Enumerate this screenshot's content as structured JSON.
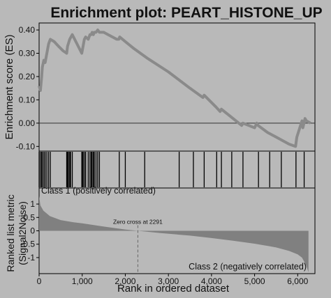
{
  "chart_data": {
    "type": "line",
    "title": "Enrichment plot: PEART_HISTONE_UP",
    "xlabel": "Rank in ordered dataset",
    "ylabel_top": "Enrichment score (ES)",
    "ylabel_bottom_line1": "Ranked list metric",
    "ylabel_bottom_line2": "(Signal2Noise)",
    "x_ticks": [
      0,
      1000,
      2000,
      3000,
      4000,
      5000,
      6000
    ],
    "x_tick_labels": [
      "0",
      "1,000",
      "2,000",
      "3,000",
      "4,000",
      "5,000",
      "6,000"
    ],
    "xlim": [
      0,
      6400
    ],
    "es_ylim": [
      -0.12,
      0.43
    ],
    "es_ticks": [
      0.4,
      0.3,
      0.2,
      0.1,
      0.0,
      -0.1
    ],
    "es_tick_labels": [
      "0.40",
      "0.30",
      "0.20",
      "0.10",
      "0.00",
      "-0.10"
    ],
    "metric_ylim": [
      -1.6,
      1.6
    ],
    "metric_ticks": [
      1,
      0.5,
      0,
      -0.5,
      -1
    ],
    "metric_tick_labels": [
      "1",
      "0.5",
      "0",
      "-0.5",
      "-1"
    ],
    "es_curve": {
      "x": [
        0,
        30,
        60,
        75,
        110,
        140,
        180,
        220,
        260,
        350,
        450,
        560,
        640,
        660,
        710,
        770,
        990,
        1020,
        1050,
        1080,
        1140,
        1180,
        1210,
        1230,
        1260,
        1280,
        1320,
        1360,
        1400,
        1450,
        1500,
        1600,
        1800,
        1850,
        1870,
        2000,
        2200,
        2500,
        3000,
        3500,
        3800,
        3830,
        4100,
        4200,
        4230,
        4500,
        4700,
        4730,
        5000,
        5050,
        5080,
        5300,
        5500,
        5800,
        5950,
        5980,
        6100,
        6120,
        6170,
        6200,
        6300
      ],
      "y": [
        0.16,
        0.14,
        0.2,
        0.24,
        0.27,
        0.26,
        0.3,
        0.34,
        0.36,
        0.35,
        0.33,
        0.31,
        0.3,
        0.33,
        0.36,
        0.38,
        0.3,
        0.33,
        0.36,
        0.37,
        0.36,
        0.38,
        0.38,
        0.39,
        0.38,
        0.39,
        0.39,
        0.4,
        0.39,
        0.39,
        0.39,
        0.38,
        0.36,
        0.36,
        0.37,
        0.35,
        0.32,
        0.28,
        0.22,
        0.15,
        0.11,
        0.12,
        0.07,
        0.05,
        0.06,
        0.02,
        -0.01,
        0.0,
        -0.02,
        0.0,
        -0.01,
        -0.04,
        -0.06,
        -0.09,
        -0.1,
        -0.06,
        0.01,
        -0.02,
        0.02,
        0.01,
        0.0
      ]
    },
    "hits": [
      0,
      30,
      60,
      75,
      110,
      140,
      180,
      220,
      260,
      640,
      660,
      680,
      710,
      730,
      770,
      990,
      1010,
      1020,
      1050,
      1080,
      1140,
      1180,
      1210,
      1230,
      1260,
      1280,
      1320,
      1360,
      1400,
      1860,
      2000,
      2450,
      3250,
      3580,
      3830,
      4120,
      4230,
      4470,
      4730,
      5090,
      5350,
      5620,
      5960,
      6150
    ],
    "metric_curve": {
      "x": [
        0,
        30,
        100,
        250,
        500,
        800,
        1000,
        1500,
        2000,
        2291,
        2800,
        3500,
        4000,
        4500,
        5000,
        5500,
        5800,
        6000,
        6100,
        6200,
        6250
      ],
      "y": [
        1.3,
        0.95,
        0.75,
        0.55,
        0.4,
        0.32,
        0.28,
        0.16,
        0.05,
        0.0,
        -0.08,
        -0.18,
        -0.27,
        -0.37,
        -0.48,
        -0.62,
        -0.75,
        -0.88,
        -1.0,
        -1.3,
        -1.55
      ]
    },
    "zero_cross_label": "Zero cross at 2291",
    "zero_cross_x": 2291,
    "class1_label": "Class 1 (positively correlated)",
    "class2_label": "Class 2 (negatively correlated)",
    "colors": {
      "background": "#b9b9b9",
      "es_line": "#8a8a8a",
      "hit": "#000000",
      "metric_fill": "#808080"
    }
  }
}
